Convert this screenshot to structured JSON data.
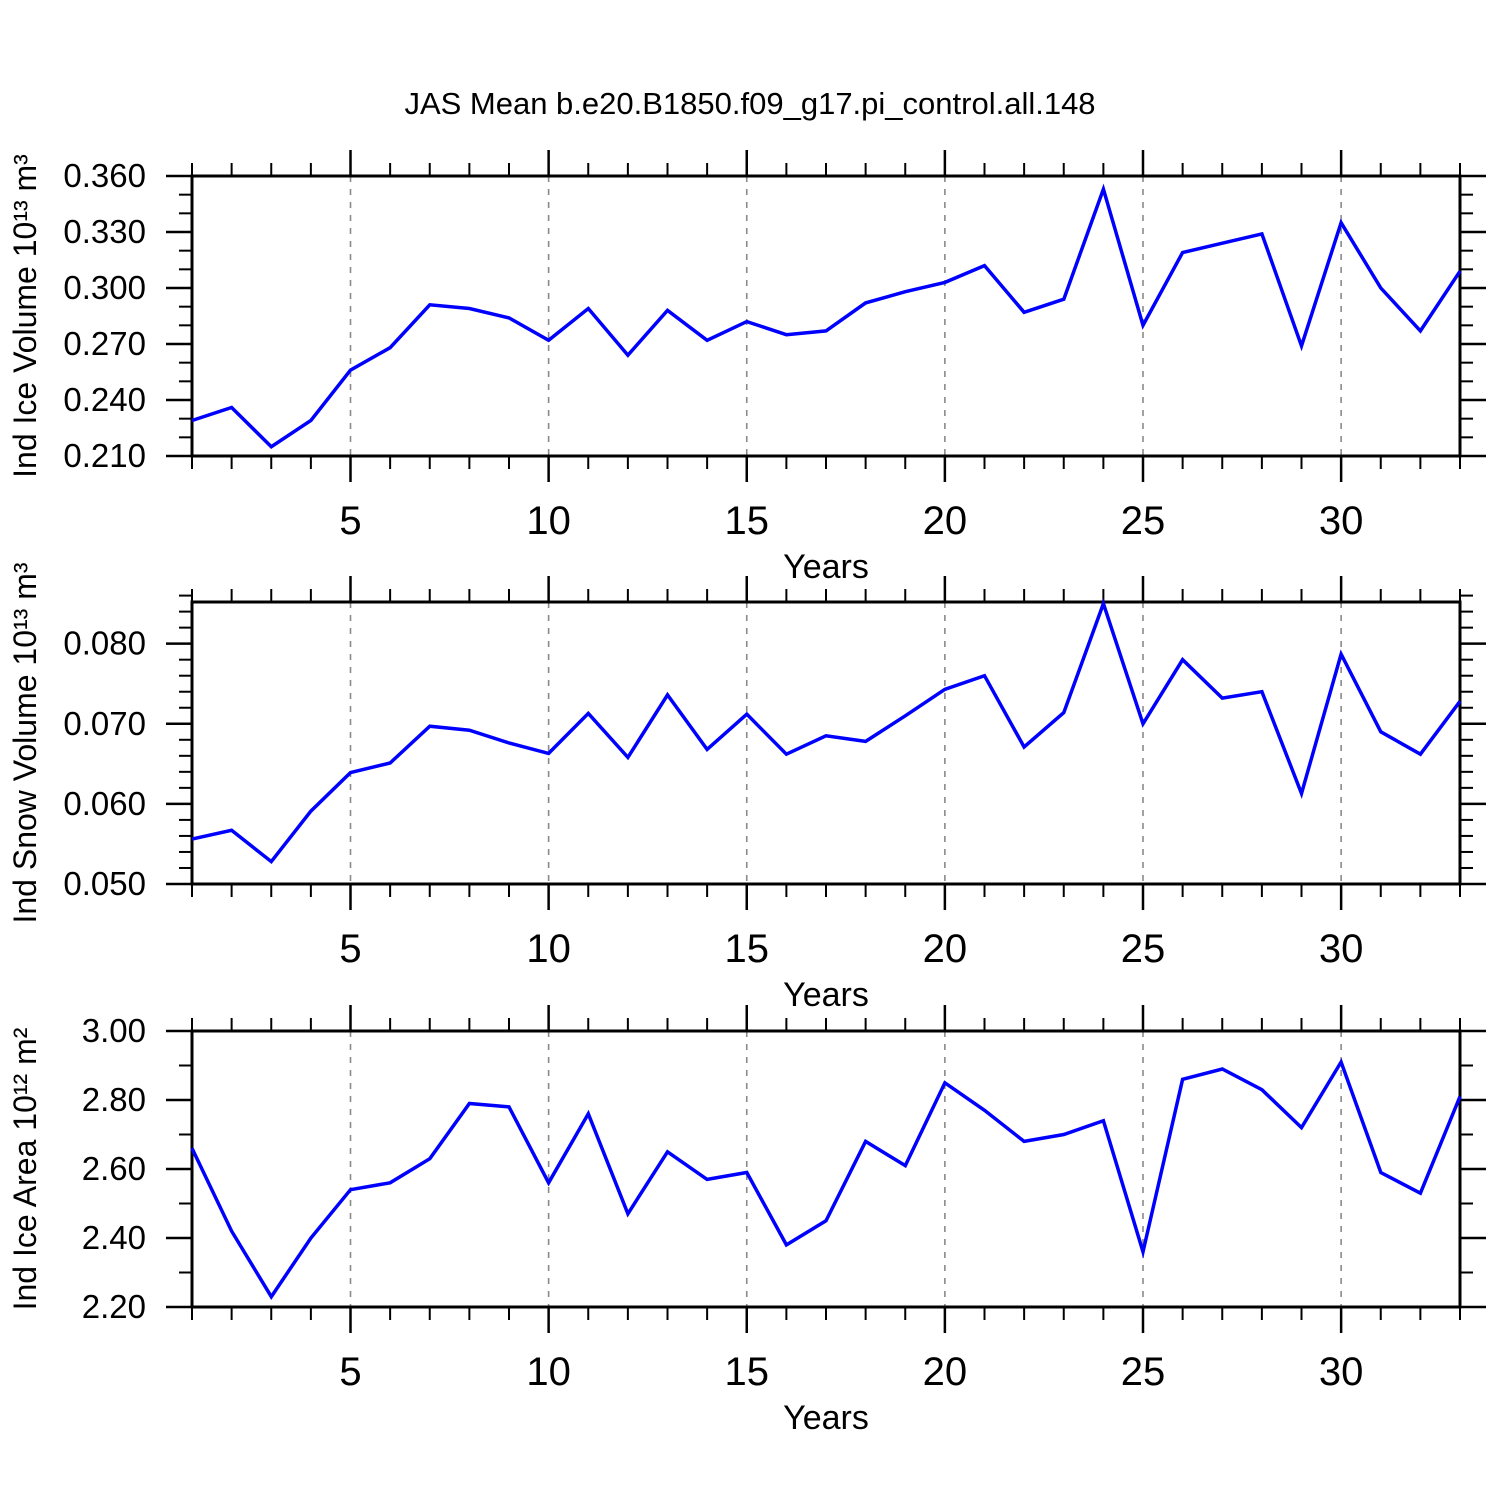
{
  "title": "JAS Mean b.e20.B1850.f09_g17.pi_control.all.148",
  "style": {
    "line_color": "#0000ff",
    "axis_color": "#000000",
    "grid_color": "#8a8a8a",
    "background": "#ffffff"
  },
  "chart_data": [
    {
      "type": "line",
      "ylabel": "Ind Ice Volume 10¹³ m³",
      "xlabel": "Years",
      "x": [
        1,
        2,
        3,
        4,
        5,
        6,
        7,
        8,
        9,
        10,
        11,
        12,
        13,
        14,
        15,
        16,
        17,
        18,
        19,
        20,
        21,
        22,
        23,
        24,
        25,
        26,
        27,
        28,
        29,
        30,
        31,
        32,
        33
      ],
      "values": [
        0.229,
        0.236,
        0.215,
        0.229,
        0.256,
        0.268,
        0.291,
        0.289,
        0.284,
        0.272,
        0.289,
        0.264,
        0.288,
        0.272,
        0.282,
        0.275,
        0.277,
        0.292,
        0.298,
        0.303,
        0.312,
        0.287,
        0.294,
        0.353,
        0.28,
        0.319,
        0.324,
        0.329,
        0.269,
        0.335,
        0.3,
        0.277,
        0.309
      ],
      "xlim": [
        1,
        33
      ],
      "ylim": [
        0.21,
        0.36
      ],
      "xticks": [
        5,
        10,
        15,
        20,
        25,
        30
      ],
      "xtick_labels": [
        "5",
        "10",
        "15",
        "20",
        "25",
        "30"
      ],
      "x_minor_step": 1,
      "yticks": [
        0.21,
        0.24,
        0.27,
        0.3,
        0.33,
        0.36
      ],
      "ytick_labels": [
        "0.210",
        "0.240",
        "0.270",
        "0.300",
        "0.330",
        "0.360"
      ],
      "y_minor_step": 0.01,
      "grid": "vertical-dashed-at-major-xticks",
      "legend": "none"
    },
    {
      "type": "line",
      "ylabel": "Ind Snow Volume 10¹³ m³",
      "xlabel": "Years",
      "x": [
        1,
        2,
        3,
        4,
        5,
        6,
        7,
        8,
        9,
        10,
        11,
        12,
        13,
        14,
        15,
        16,
        17,
        18,
        19,
        20,
        21,
        22,
        23,
        24,
        25,
        26,
        27,
        28,
        29,
        30,
        31,
        32,
        33
      ],
      "values": [
        0.0556,
        0.0567,
        0.0528,
        0.0591,
        0.0639,
        0.0651,
        0.0697,
        0.0692,
        0.0676,
        0.0663,
        0.0713,
        0.0658,
        0.0736,
        0.0668,
        0.0712,
        0.0662,
        0.0685,
        0.0678,
        0.071,
        0.0743,
        0.076,
        0.0671,
        0.0714,
        0.085,
        0.07,
        0.078,
        0.0732,
        0.074,
        0.0613,
        0.0787,
        0.069,
        0.0662,
        0.0728
      ],
      "xlim": [
        1,
        33
      ],
      "ylim": [
        0.05,
        0.0852
      ],
      "xticks": [
        5,
        10,
        15,
        20,
        25,
        30
      ],
      "xtick_labels": [
        "5",
        "10",
        "15",
        "20",
        "25",
        "30"
      ],
      "x_minor_step": 1,
      "yticks": [
        0.05,
        0.06,
        0.07,
        0.08
      ],
      "ytick_labels": [
        "0.050",
        "0.060",
        "0.070",
        "0.080"
      ],
      "y_minor_step": 0.002,
      "grid": "vertical-dashed-at-major-xticks",
      "legend": "none"
    },
    {
      "type": "line",
      "ylabel": "Ind Ice Area 10¹² m²",
      "xlabel": "Years",
      "x": [
        1,
        2,
        3,
        4,
        5,
        6,
        7,
        8,
        9,
        10,
        11,
        12,
        13,
        14,
        15,
        16,
        17,
        18,
        19,
        20,
        21,
        22,
        23,
        24,
        25,
        26,
        27,
        28,
        29,
        30,
        31,
        32,
        33
      ],
      "values": [
        2.66,
        2.42,
        2.23,
        2.4,
        2.54,
        2.56,
        2.63,
        2.79,
        2.78,
        2.56,
        2.76,
        2.47,
        2.65,
        2.57,
        2.59,
        2.38,
        2.45,
        2.68,
        2.61,
        2.85,
        2.77,
        2.68,
        2.7,
        2.74,
        2.36,
        2.86,
        2.89,
        2.83,
        2.72,
        2.91,
        2.59,
        2.53,
        2.81
      ],
      "xlim": [
        1,
        33
      ],
      "ylim": [
        2.2,
        3.0
      ],
      "xticks": [
        5,
        10,
        15,
        20,
        25,
        30
      ],
      "xtick_labels": [
        "5",
        "10",
        "15",
        "20",
        "25",
        "30"
      ],
      "x_minor_step": 1,
      "yticks": [
        2.2,
        2.4,
        2.6,
        2.8,
        3.0
      ],
      "ytick_labels": [
        "2.20",
        "2.40",
        "2.60",
        "2.80",
        "3.00"
      ],
      "y_minor_step": 0.1,
      "grid": "vertical-dashed-at-major-xticks",
      "legend": "none"
    }
  ]
}
